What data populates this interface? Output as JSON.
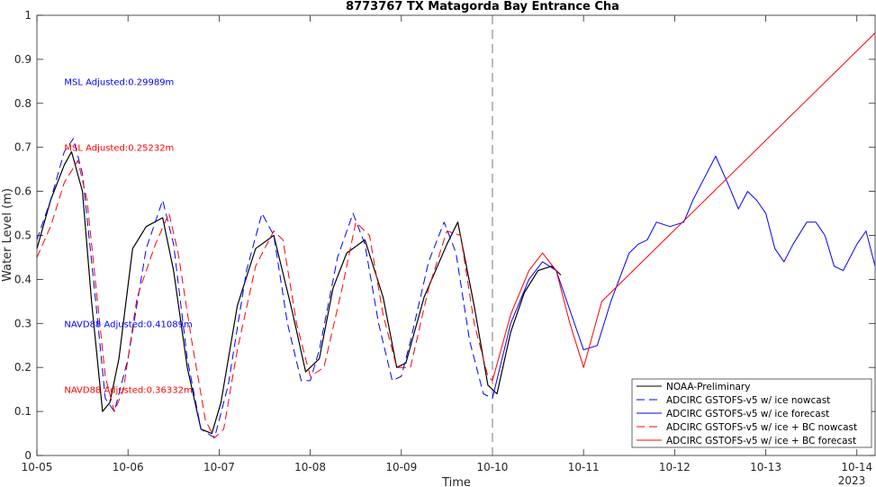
{
  "chart_data": {
    "type": "line",
    "title": "8773767 TX Matagorda Bay Entrance Cha",
    "xlabel": "Time",
    "ylabel": "Water Level (m)",
    "ylim": [
      0,
      1
    ],
    "xlim": [
      0,
      9.2
    ],
    "yticks": [
      "0",
      "0.1",
      "0.2",
      "0.3",
      "0.4",
      "0.5",
      "0.6",
      "0.7",
      "0.8",
      "0.9",
      "1"
    ],
    "xticks": [
      {
        "x": 0,
        "label": "10-05"
      },
      {
        "x": 1,
        "label": "10-06"
      },
      {
        "x": 2,
        "label": "10-07"
      },
      {
        "x": 3,
        "label": "10-08"
      },
      {
        "x": 4,
        "label": "10-09"
      },
      {
        "x": 5,
        "label": "10-10"
      },
      {
        "x": 6,
        "label": "10-11"
      },
      {
        "x": 7,
        "label": "10-12"
      },
      {
        "x": 8,
        "label": "10-13"
      },
      {
        "x": 9,
        "label": "10-14"
      }
    ],
    "year_label": "2023",
    "nowcast_boundary": 5.0,
    "annotations": [
      {
        "text": "MSL Adjusted:0.29989m",
        "color": "#0000ff",
        "x": 0.3,
        "y": 0.85
      },
      {
        "text": "MSL Adjusted:0.25232m",
        "color": "#ff0000",
        "x": 0.3,
        "y": 0.7
      },
      {
        "text": "NAVD88 Adjusted:0.41089m",
        "color": "#0000ff",
        "x": 0.3,
        "y": 0.3
      },
      {
        "text": "NAVD88 Adjusted:0.36332m",
        "color": "#ff0000",
        "x": 0.3,
        "y": 0.15
      }
    ],
    "legend_position": "bottom-right",
    "series": [
      {
        "name": "NOAA-Preliminary",
        "color": "#000000",
        "style": "solid",
        "x": [
          0,
          0.15,
          0.3,
          0.38,
          0.5,
          0.6,
          0.72,
          0.8,
          0.9,
          1.05,
          1.2,
          1.38,
          1.5,
          1.65,
          1.8,
          1.92,
          2.02,
          2.2,
          2.4,
          2.6,
          2.8,
          2.95,
          3.1,
          3.25,
          3.4,
          3.6,
          3.8,
          3.95,
          4.05,
          4.25,
          4.5,
          4.62,
          4.8,
          4.95,
          5.05,
          5.2,
          5.35,
          5.5,
          5.65,
          5.75
        ],
        "y": [
          0.47,
          0.58,
          0.66,
          0.69,
          0.6,
          0.35,
          0.1,
          0.12,
          0.22,
          0.47,
          0.52,
          0.54,
          0.42,
          0.2,
          0.06,
          0.05,
          0.12,
          0.34,
          0.47,
          0.5,
          0.33,
          0.19,
          0.22,
          0.38,
          0.46,
          0.49,
          0.36,
          0.2,
          0.21,
          0.36,
          0.48,
          0.53,
          0.34,
          0.16,
          0.14,
          0.28,
          0.37,
          0.42,
          0.43,
          0.41
        ]
      },
      {
        "name": "ADCIRC GSTOFS-v5 w/ ice nowcast",
        "color": "#0000ff",
        "style": "dashed",
        "x": [
          0,
          0.15,
          0.3,
          0.4,
          0.5,
          0.65,
          0.75,
          0.85,
          1.0,
          1.2,
          1.38,
          1.5,
          1.65,
          1.8,
          1.95,
          2.1,
          2.3,
          2.47,
          2.6,
          2.75,
          2.9,
          3.0,
          3.1,
          3.3,
          3.47,
          3.6,
          3.75,
          3.9,
          4.0,
          4.1,
          4.3,
          4.47,
          4.6,
          4.75,
          4.9,
          5.0
        ],
        "y": [
          0.49,
          0.58,
          0.69,
          0.72,
          0.64,
          0.34,
          0.13,
          0.1,
          0.22,
          0.47,
          0.58,
          0.48,
          0.22,
          0.06,
          0.04,
          0.16,
          0.42,
          0.55,
          0.5,
          0.3,
          0.17,
          0.17,
          0.24,
          0.45,
          0.55,
          0.48,
          0.3,
          0.17,
          0.18,
          0.26,
          0.44,
          0.53,
          0.46,
          0.26,
          0.14,
          0.13
        ]
      },
      {
        "name": "ADCIRC GSTOFS-v5 w/ ice forecast",
        "color": "#0000ff",
        "style": "solid",
        "x": [
          5.0,
          5.2,
          5.4,
          5.55,
          5.7,
          5.85,
          6.0,
          6.15,
          6.3,
          6.5,
          6.6,
          6.7,
          6.8,
          6.95,
          7.1,
          7.2,
          7.3,
          7.45,
          7.6,
          7.7,
          7.8,
          7.9,
          8.0,
          8.1,
          8.2,
          8.3,
          8.45,
          8.55,
          8.65,
          8.75,
          8.85,
          9.0,
          9.1,
          9.2
        ],
        "y": [
          0.13,
          0.3,
          0.4,
          0.44,
          0.42,
          0.33,
          0.24,
          0.25,
          0.35,
          0.46,
          0.48,
          0.49,
          0.53,
          0.52,
          0.53,
          0.58,
          0.62,
          0.68,
          0.61,
          0.56,
          0.6,
          0.58,
          0.55,
          0.47,
          0.44,
          0.48,
          0.53,
          0.53,
          0.5,
          0.43,
          0.42,
          0.48,
          0.51,
          0.43
        ]
      },
      {
        "name": "ADCIRC GSTOFS-v5 w/ ice + BC nowcast",
        "color": "#ff0000",
        "style": "dashed",
        "x": [
          0,
          0.15,
          0.3,
          0.45,
          0.55,
          0.65,
          0.75,
          0.85,
          0.95,
          1.1,
          1.3,
          1.45,
          1.55,
          1.7,
          1.85,
          1.95,
          2.05,
          2.2,
          2.4,
          2.6,
          2.7,
          2.85,
          3.0,
          3.15,
          3.35,
          3.5,
          3.65,
          3.8,
          3.95,
          4.1,
          4.3,
          4.5,
          4.65,
          4.8,
          4.95,
          5.0
        ],
        "y": [
          0.45,
          0.52,
          0.62,
          0.67,
          0.58,
          0.38,
          0.18,
          0.1,
          0.15,
          0.36,
          0.48,
          0.55,
          0.46,
          0.26,
          0.08,
          0.04,
          0.06,
          0.24,
          0.43,
          0.51,
          0.49,
          0.3,
          0.18,
          0.2,
          0.38,
          0.53,
          0.5,
          0.32,
          0.2,
          0.2,
          0.38,
          0.51,
          0.5,
          0.3,
          0.18,
          0.17
        ]
      },
      {
        "name": "ADCIRC GSTOFS-v5 w/ ice + BC forecast",
        "color": "#ff0000",
        "style": "solid",
        "x": [
          5.0,
          5.2,
          5.4,
          5.55,
          5.7,
          5.85,
          6.0,
          6.2,
          9.2
        ],
        "y": [
          0.17,
          0.32,
          0.42,
          0.46,
          0.42,
          0.3,
          0.2,
          0.35,
          0.96
        ]
      }
    ]
  }
}
